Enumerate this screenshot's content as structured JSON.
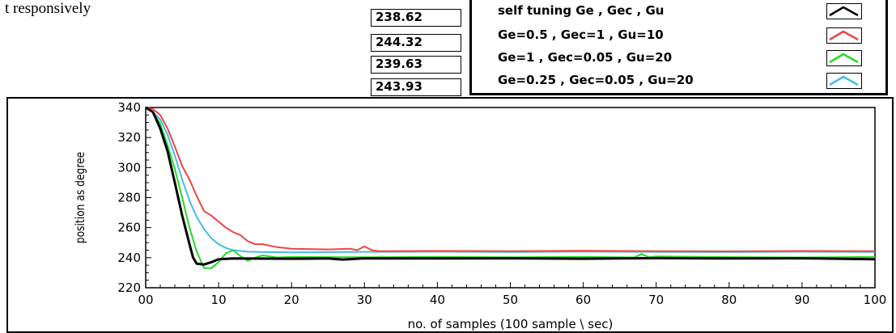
{
  "top_text": "t responsively",
  "readouts": [
    "238.62",
    "244.32",
    "239.63",
    "243.93"
  ],
  "legend": [
    {
      "label": "self tuning Ge , Gec , Gu",
      "color": "#000000"
    },
    {
      "label": "Ge=0.5 , Gec=1 , Gu=10",
      "color": "#ee4444"
    },
    {
      "label": "Ge=1 , Gec=0.05 , Gu=20",
      "color": "#22dd22"
    },
    {
      "label": "Ge=0.25 , Gec=0.05 , Gu=20",
      "color": "#44bbee"
    }
  ],
  "chart_data": {
    "type": "line",
    "title": "",
    "xlabel": "no. of samples (100 sample \\ sec)",
    "ylabel": "position as degree",
    "xlim": [
      0,
      100
    ],
    "ylim": [
      220,
      340
    ],
    "xticks": [
      "00",
      "10",
      "20",
      "30",
      "40",
      "50",
      "60",
      "70",
      "80",
      "90",
      "100"
    ],
    "yticks": [
      "220",
      "240",
      "260",
      "280",
      "300",
      "320",
      "340"
    ],
    "grid": false,
    "series": [
      {
        "name": "self tuning Ge , Gec , Gu",
        "color": "#000000",
        "width": 3,
        "points": [
          [
            0,
            340
          ],
          [
            1,
            337
          ],
          [
            2,
            326
          ],
          [
            3,
            311
          ],
          [
            4,
            290
          ],
          [
            5,
            268
          ],
          [
            6,
            249
          ],
          [
            6.5,
            240
          ],
          [
            7,
            236
          ],
          [
            8,
            235.5
          ],
          [
            9,
            237
          ],
          [
            10,
            239
          ],
          [
            12,
            239.5
          ],
          [
            20,
            239.3
          ],
          [
            25,
            239.5
          ],
          [
            27,
            238.8
          ],
          [
            30,
            239.6
          ],
          [
            40,
            239.5
          ],
          [
            50,
            239.6
          ],
          [
            60,
            239.3
          ],
          [
            70,
            239.7
          ],
          [
            80,
            239.5
          ],
          [
            90,
            239.6
          ],
          [
            100,
            239
          ]
        ]
      },
      {
        "name": "Ge=0.5 , Gec=1 , Gu=10",
        "color": "#ee4444",
        "width": 2,
        "points": [
          [
            0,
            340
          ],
          [
            1,
            339
          ],
          [
            2,
            335
          ],
          [
            3,
            326
          ],
          [
            4,
            314
          ],
          [
            5,
            301
          ],
          [
            6,
            292
          ],
          [
            7,
            281
          ],
          [
            8,
            271
          ],
          [
            9,
            268
          ],
          [
            10,
            264
          ],
          [
            11,
            260
          ],
          [
            12,
            257
          ],
          [
            13,
            255
          ],
          [
            14,
            251
          ],
          [
            15,
            249
          ],
          [
            16,
            249
          ],
          [
            18,
            247
          ],
          [
            20,
            246
          ],
          [
            25,
            245.5
          ],
          [
            28,
            246
          ],
          [
            29,
            245
          ],
          [
            30,
            247.5
          ],
          [
            31,
            245
          ],
          [
            32,
            244.3
          ],
          [
            40,
            244.5
          ],
          [
            50,
            244.3
          ],
          [
            60,
            244.6
          ],
          [
            70,
            244.3
          ],
          [
            80,
            244.2
          ],
          [
            90,
            244.5
          ],
          [
            100,
            244.3
          ]
        ]
      },
      {
        "name": "Ge=1 , Gec=0.05 , Gu=20",
        "color": "#22dd22",
        "width": 2,
        "points": [
          [
            0,
            340
          ],
          [
            1,
            337
          ],
          [
            2,
            329
          ],
          [
            3,
            315
          ],
          [
            4,
            299
          ],
          [
            5,
            280
          ],
          [
            6,
            260
          ],
          [
            7,
            244
          ],
          [
            8,
            233
          ],
          [
            9,
            233
          ],
          [
            10,
            237
          ],
          [
            11,
            243
          ],
          [
            12,
            245
          ],
          [
            13,
            241
          ],
          [
            14,
            238
          ],
          [
            15,
            240
          ],
          [
            16,
            241.5
          ],
          [
            18,
            240.2
          ],
          [
            20,
            240.5
          ],
          [
            30,
            240.3
          ],
          [
            40,
            240.5
          ],
          [
            50,
            240.3
          ],
          [
            60,
            240.5
          ],
          [
            67,
            240.2
          ],
          [
            68,
            242.5
          ],
          [
            69,
            240.3
          ],
          [
            70,
            240.8
          ],
          [
            80,
            240.4
          ],
          [
            90,
            240.2
          ],
          [
            100,
            240.5
          ]
        ]
      },
      {
        "name": "Ge=0.25 , Gec=0.05 , Gu=20",
        "color": "#44bbee",
        "width": 2,
        "points": [
          [
            0,
            340
          ],
          [
            1,
            337
          ],
          [
            2,
            332
          ],
          [
            3,
            322
          ],
          [
            4,
            308
          ],
          [
            5,
            292
          ],
          [
            6,
            278
          ],
          [
            7,
            267
          ],
          [
            8,
            259
          ],
          [
            9,
            253
          ],
          [
            10,
            249
          ],
          [
            11,
            246.5
          ],
          [
            12,
            245
          ],
          [
            14,
            244
          ],
          [
            16,
            243.8
          ],
          [
            20,
            243.5
          ],
          [
            30,
            243.9
          ],
          [
            40,
            244.1
          ],
          [
            50,
            243.8
          ],
          [
            60,
            244.1
          ],
          [
            70,
            243.9
          ],
          [
            80,
            243.8
          ],
          [
            90,
            244
          ],
          [
            100,
            243.9
          ]
        ]
      }
    ]
  }
}
